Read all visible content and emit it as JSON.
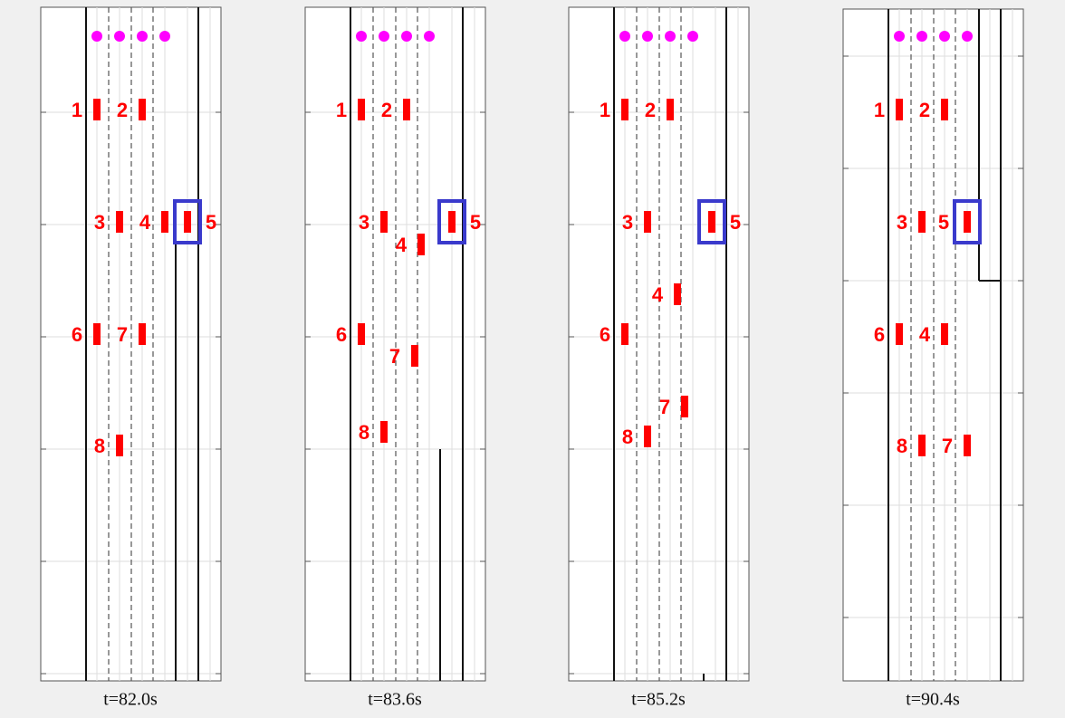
{
  "panels": [
    {
      "caption": "t=82.0s",
      "vehicles": [
        "1",
        "2",
        "3",
        "4",
        "5",
        "6",
        "7",
        "8"
      ]
    },
    {
      "caption": "t=83.6s",
      "vehicles": [
        "1",
        "2",
        "3",
        "5",
        "4",
        "6",
        "7",
        "8"
      ]
    },
    {
      "caption": "t=85.2s",
      "vehicles": [
        "1",
        "2",
        "3",
        "5",
        "4",
        "6",
        "7",
        "8"
      ]
    },
    {
      "caption": "t=90.4s",
      "vehicles": [
        "1",
        "2",
        "3",
        "5",
        "6",
        "4",
        "8",
        "7"
      ]
    }
  ]
}
